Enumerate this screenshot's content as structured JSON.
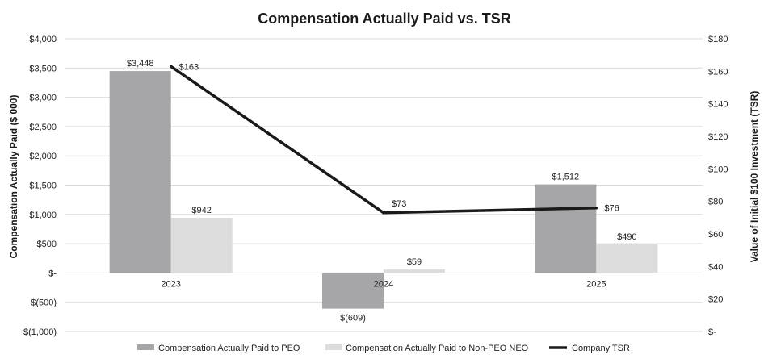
{
  "chart_data": {
    "type": "bar",
    "title": "Compensation Actually Paid vs. TSR",
    "categories": [
      "2023",
      "2024",
      "2025"
    ],
    "y_left": {
      "label": "Compensation Actually Paid ($ 000)",
      "range": [
        -1000,
        4000
      ],
      "ticks": [
        -1000,
        -500,
        0,
        500,
        1000,
        1500,
        2000,
        2500,
        3000,
        3500,
        4000
      ],
      "tick_labels": [
        "$(1,000)",
        "$(500)",
        "$-",
        "$500",
        "$1,000",
        "$1,500",
        "$2,000",
        "$2,500",
        "$3,000",
        "$3,500",
        "$4,000"
      ]
    },
    "y_right": {
      "label": "Value of Initial $100 Investment (TSR)",
      "range": [
        0,
        180
      ],
      "ticks": [
        0,
        20,
        40,
        60,
        80,
        100,
        120,
        140,
        160,
        180
      ],
      "tick_labels": [
        "$-",
        "$20",
        "$40",
        "$60",
        "$80",
        "$100",
        "$120",
        "$140",
        "$160",
        "$180"
      ]
    },
    "series": [
      {
        "name": "Compensation Actually Paid to PEO",
        "type": "bar",
        "axis": "left",
        "color": "#a6a6a8",
        "values": [
          3448,
          -609,
          1512
        ],
        "labels": [
          "$3,448",
          "$(609)",
          "$1,512"
        ]
      },
      {
        "name": "Compensation Actually Paid to Non-PEO NEO",
        "type": "bar",
        "axis": "left",
        "color": "#dcdcdd",
        "values": [
          942,
          59,
          490
        ],
        "labels": [
          "$942",
          "$59",
          "$490"
        ]
      },
      {
        "name": "Company TSR",
        "type": "line",
        "axis": "right",
        "color": "#1a1a1a",
        "values": [
          163,
          73,
          76
        ],
        "labels": [
          "$163",
          "$73",
          "$76"
        ]
      }
    ],
    "grid": true,
    "legend": "bottom"
  }
}
